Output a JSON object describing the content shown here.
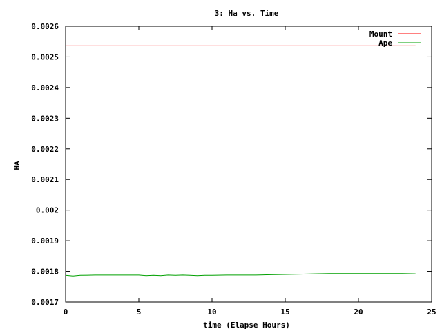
{
  "chart_data": {
    "type": "line",
    "title": "3: Ha vs. Time",
    "xlabel": "time (Elapse Hours)",
    "ylabel": "HA",
    "xlim": [
      0,
      25
    ],
    "ylim": [
      0.0017,
      0.0026
    ],
    "xticks": [
      0,
      5,
      10,
      15,
      20,
      25
    ],
    "xtick_labels": [
      "0",
      "5",
      "10",
      "15",
      "20",
      "25"
    ],
    "yticks": [
      0.0017,
      0.0018,
      0.0019,
      0.002,
      0.0021,
      0.0022,
      0.0023,
      0.0024,
      0.0025,
      0.0026
    ],
    "ytick_labels": [
      "0.0017",
      "0.0018",
      "0.0019",
      "0.002",
      "0.0021",
      "0.0022",
      "0.0023",
      "0.0024",
      "0.0025",
      "0.0026"
    ],
    "grid": false,
    "legend_position": "top-right",
    "series": [
      {
        "name": "Mount",
        "color": "#ff0000",
        "x": [
          0,
          23.9
        ],
        "y": [
          0.002536,
          0.002536
        ]
      },
      {
        "name": "Ape",
        "color": "#00a000",
        "x": [
          0,
          0.5,
          1,
          2,
          3,
          4,
          5,
          5.5,
          6,
          6.5,
          7,
          7.5,
          8,
          8.5,
          9,
          9.5,
          10,
          11,
          12,
          13,
          14,
          15,
          16,
          17,
          18,
          19,
          20,
          21,
          22,
          23,
          23.9
        ],
        "y": [
          0.001787,
          0.001785,
          0.001787,
          0.001788,
          0.001788,
          0.001788,
          0.001788,
          0.001786,
          0.001787,
          0.001786,
          0.001788,
          0.001787,
          0.001788,
          0.001787,
          0.001786,
          0.001787,
          0.001787,
          0.001788,
          0.001788,
          0.001788,
          0.001789,
          0.00179,
          0.001791,
          0.001792,
          0.001793,
          0.001793,
          0.001793,
          0.001793,
          0.001793,
          0.001793,
          0.001792
        ]
      }
    ]
  }
}
